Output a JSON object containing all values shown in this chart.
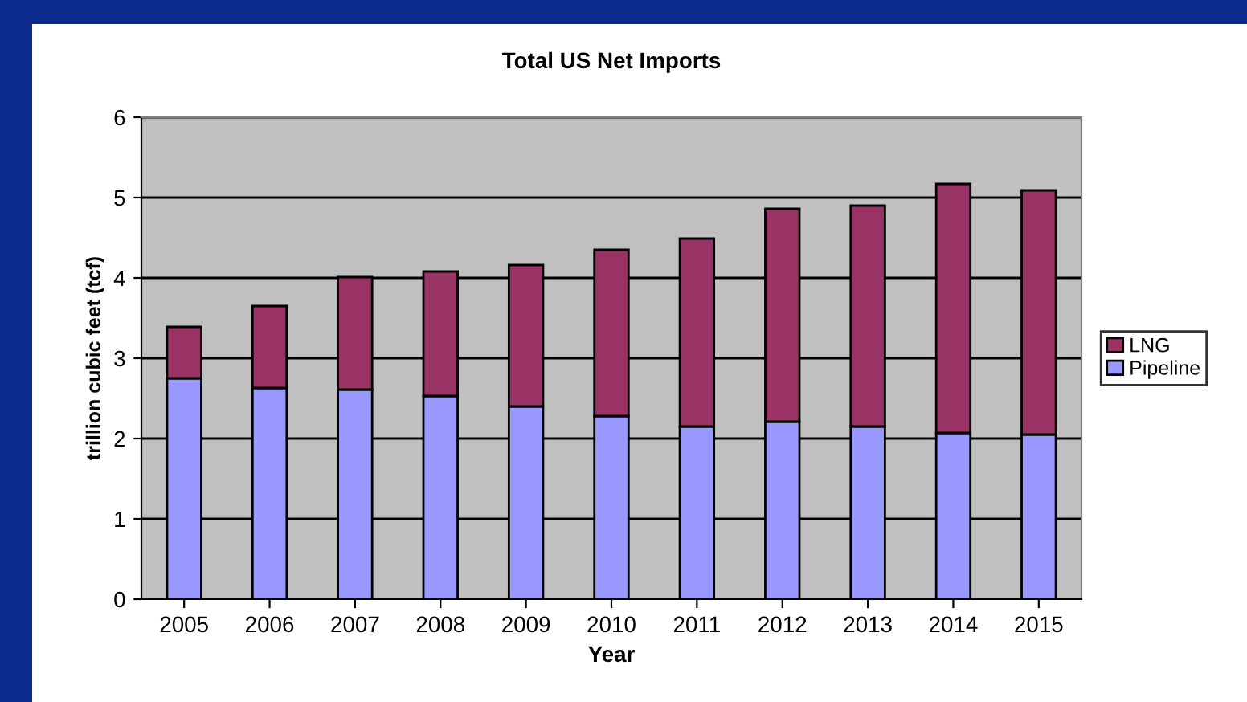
{
  "chart_data": {
    "type": "bar",
    "title": "Total US Net Imports",
    "xlabel": "Year",
    "ylabel": "trillion cubic feet (tcf)",
    "categories": [
      "2005",
      "2006",
      "2007",
      "2008",
      "2009",
      "2010",
      "2011",
      "2012",
      "2013",
      "2014",
      "2015"
    ],
    "stacked": true,
    "series": [
      {
        "name": "Pipeline",
        "color": "#9999ff",
        "values": [
          2.75,
          2.63,
          2.61,
          2.53,
          2.4,
          2.28,
          2.15,
          2.21,
          2.15,
          2.07,
          2.05
        ]
      },
      {
        "name": "LNG",
        "color": "#993366",
        "values": [
          0.64,
          1.02,
          1.4,
          1.55,
          1.76,
          2.07,
          2.34,
          2.65,
          2.75,
          3.1,
          3.04
        ]
      }
    ],
    "ylim": [
      0,
      6
    ],
    "yticks": [
      0,
      1,
      2,
      3,
      4,
      5,
      6
    ],
    "grid": "y",
    "legend": "right"
  }
}
